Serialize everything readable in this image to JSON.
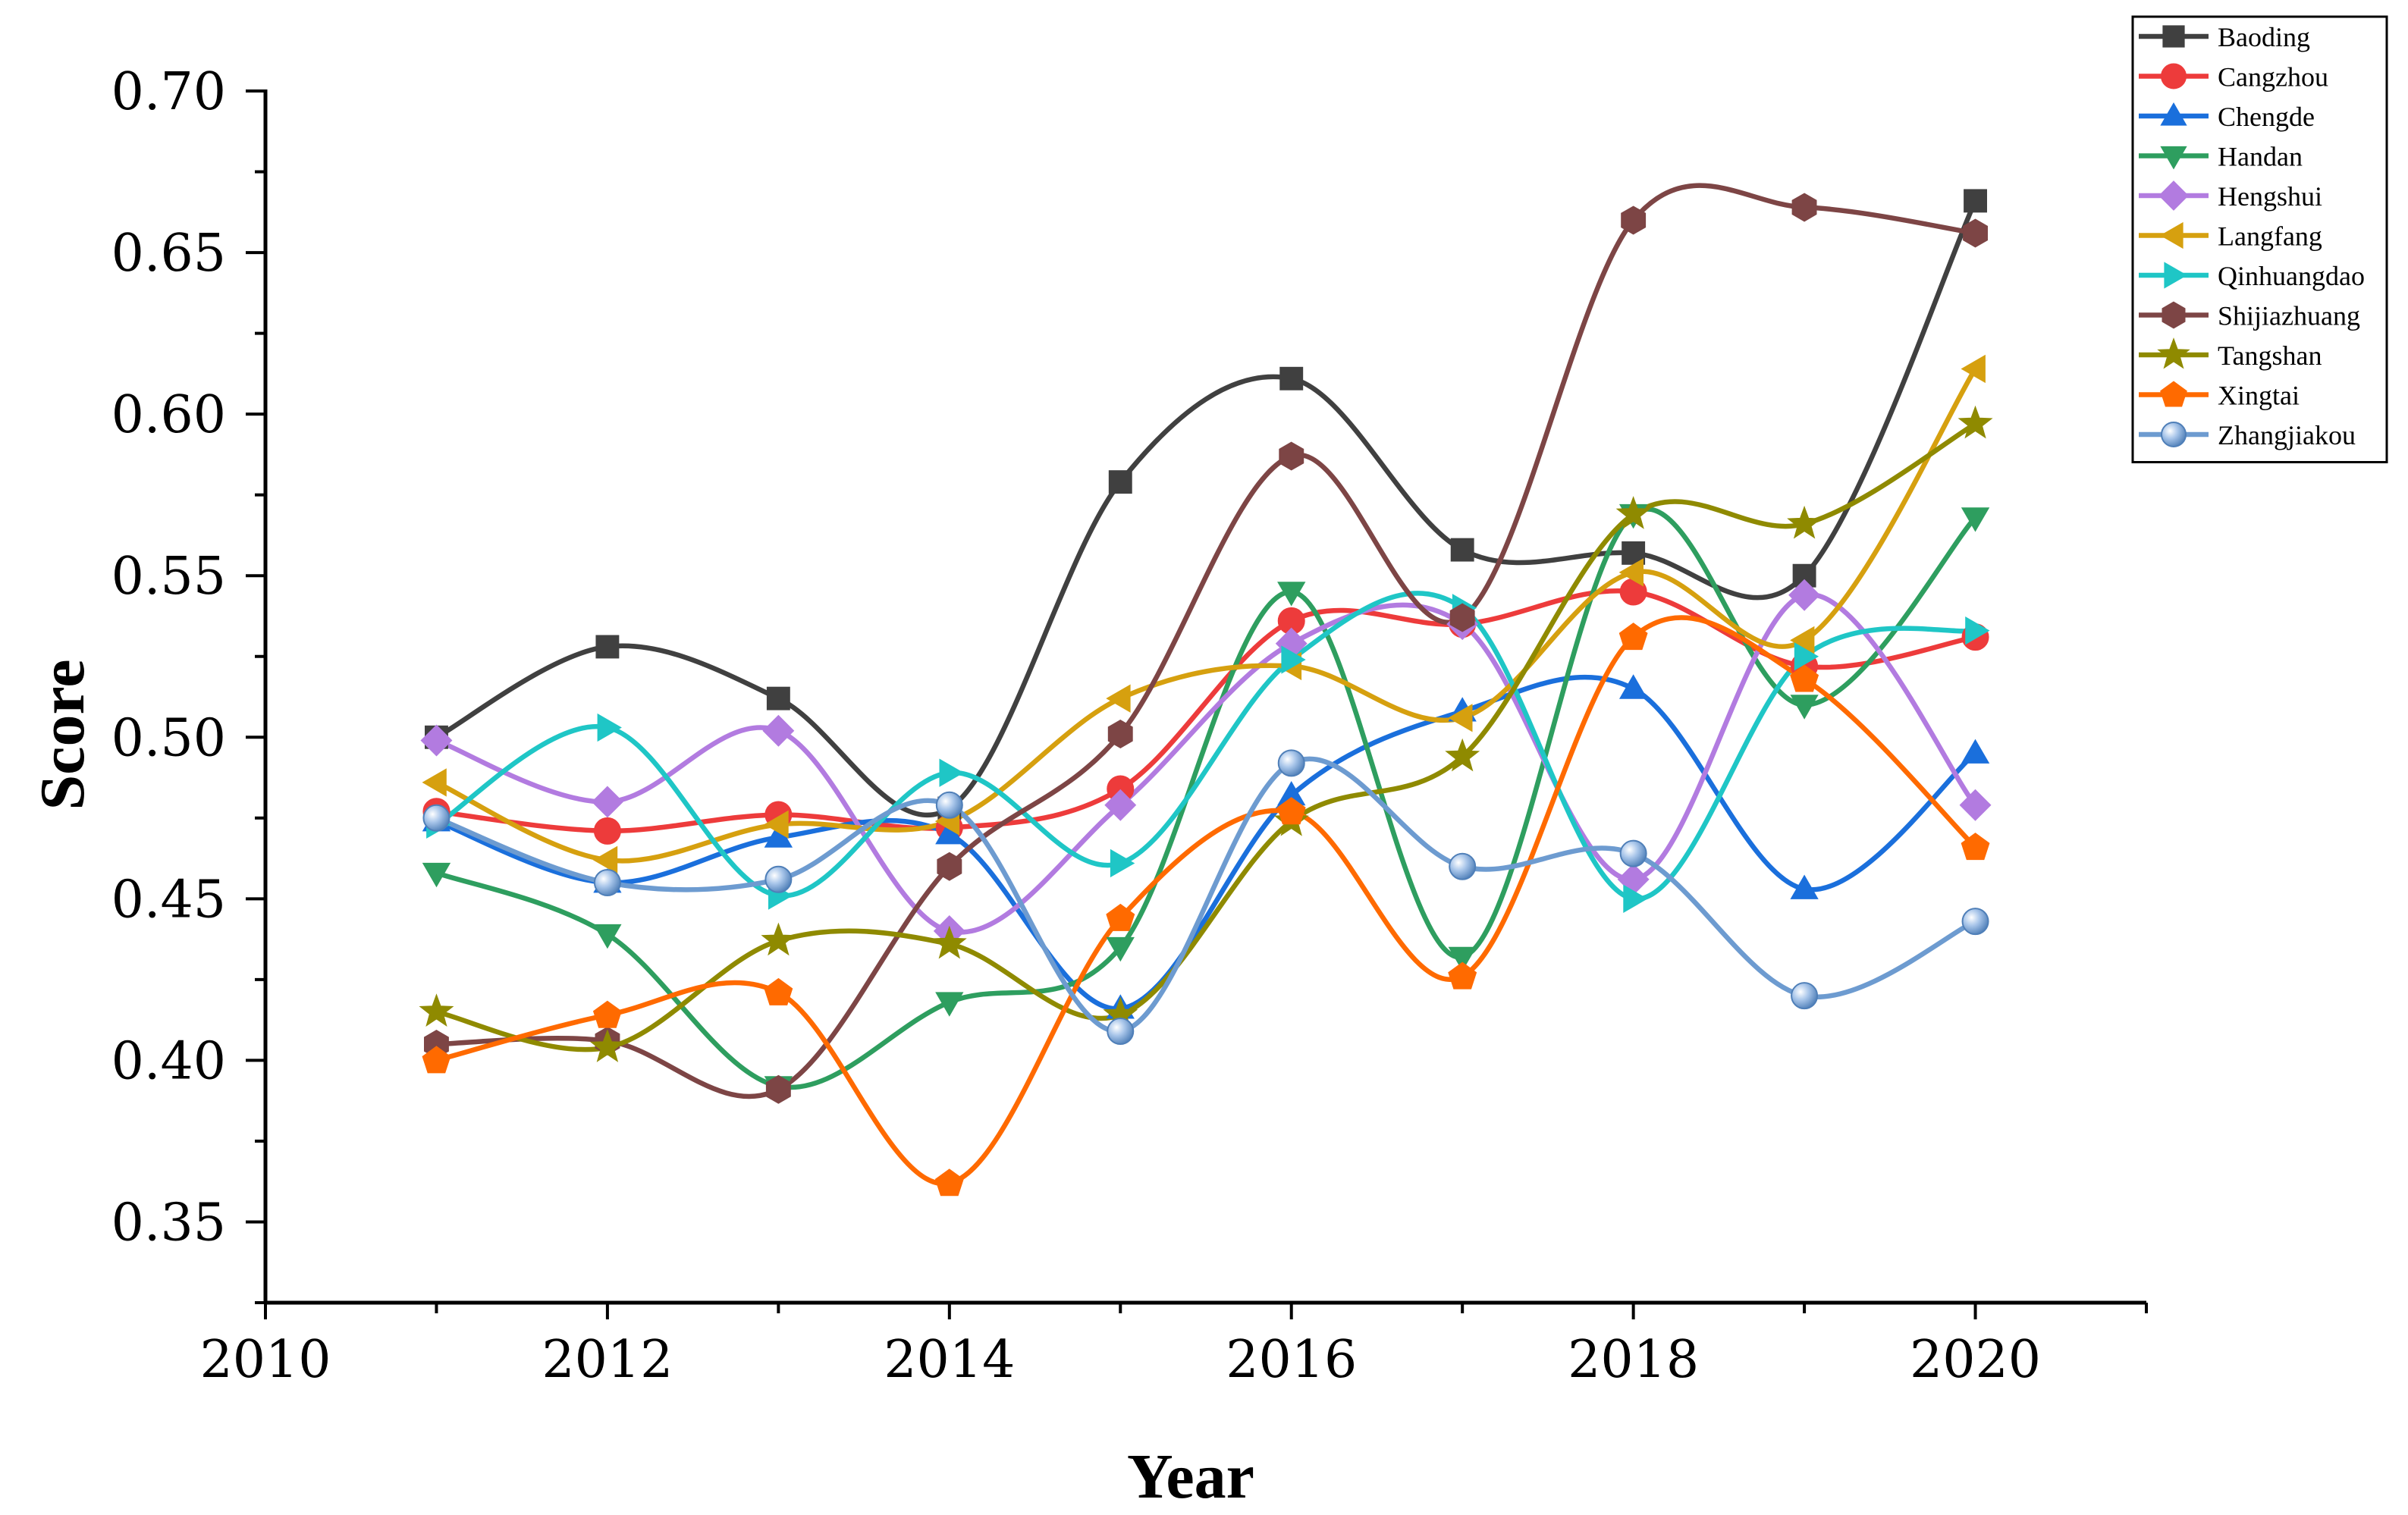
{
  "chart_data": {
    "type": "line",
    "xlabel": "Year",
    "ylabel": "Score",
    "xlim": [
      2010,
      2021
    ],
    "ylim": [
      0.325,
      0.7
    ],
    "x_ticks": [
      2010,
      2012,
      2014,
      2016,
      2018,
      2020
    ],
    "x_tick_labels": [
      "2010",
      "2012",
      "2014",
      "2016",
      "2018",
      "2020"
    ],
    "y_ticks": [
      0.35,
      0.4,
      0.45,
      0.5,
      0.55,
      0.6,
      0.65,
      0.7
    ],
    "y_tick_labels": [
      "0.35",
      "0.40",
      "0.45",
      "0.50",
      "0.55",
      "0.60",
      "0.65",
      "0.70"
    ],
    "x": [
      2011,
      2012,
      2013,
      2014,
      2015,
      2016,
      2017,
      2018,
      2019,
      2020
    ],
    "legend_position": "top-right",
    "series": [
      {
        "name": "Baoding",
        "color": "#404040",
        "marker": "square",
        "values": [
          0.5,
          0.528,
          0.512,
          0.478,
          0.579,
          0.611,
          0.558,
          0.557,
          0.55,
          0.666
        ]
      },
      {
        "name": "Cangzhou",
        "color": "#ed3b3b",
        "marker": "circle",
        "values": [
          0.477,
          0.471,
          0.476,
          0.472,
          0.484,
          0.536,
          0.535,
          0.545,
          0.522,
          0.531
        ]
      },
      {
        "name": "Chengde",
        "color": "#1a6fdc",
        "marker": "triangle-up",
        "values": [
          0.474,
          0.455,
          0.469,
          0.47,
          0.416,
          0.482,
          0.508,
          0.515,
          0.453,
          0.495
        ]
      },
      {
        "name": "Handan",
        "color": "#2e9e5f",
        "marker": "triangle-down",
        "values": [
          0.458,
          0.439,
          0.392,
          0.418,
          0.435,
          0.545,
          0.432,
          0.569,
          0.51,
          0.568
        ]
      },
      {
        "name": "Hengshui",
        "color": "#b27be0",
        "marker": "diamond",
        "values": [
          0.499,
          0.48,
          0.502,
          0.44,
          0.479,
          0.529,
          0.535,
          0.456,
          0.544,
          0.479
        ]
      },
      {
        "name": "Langfang",
        "color": "#d6a00f",
        "marker": "triangle-left",
        "values": [
          0.486,
          0.462,
          0.473,
          0.474,
          0.512,
          0.522,
          0.506,
          0.551,
          0.53,
          0.614
        ]
      },
      {
        "name": "Qinhuangdao",
        "color": "#1fc6c6",
        "marker": "triangle-right",
        "values": [
          0.473,
          0.503,
          0.451,
          0.489,
          0.461,
          0.524,
          0.54,
          0.45,
          0.525,
          0.533
        ]
      },
      {
        "name": "Shijiazhuang",
        "color": "#7d4545",
        "marker": "hexagon",
        "values": [
          0.405,
          0.406,
          0.391,
          0.46,
          0.501,
          0.587,
          0.537,
          0.66,
          0.664,
          0.656
        ]
      },
      {
        "name": "Tangshan",
        "color": "#8f8a00",
        "marker": "star",
        "values": [
          0.415,
          0.404,
          0.437,
          0.436,
          0.414,
          0.474,
          0.494,
          0.569,
          0.566,
          0.597
        ]
      },
      {
        "name": "Xingtai",
        "color": "#ff6a00",
        "marker": "pentagon",
        "values": [
          0.4,
          0.414,
          0.421,
          0.362,
          0.444,
          0.477,
          0.426,
          0.531,
          0.518,
          0.466
        ]
      },
      {
        "name": "Zhangjiakou",
        "color": "#6d9bd0",
        "marker": "sphere",
        "values": [
          0.475,
          0.455,
          0.456,
          0.479,
          0.409,
          0.492,
          0.46,
          0.464,
          0.42,
          0.443
        ]
      }
    ]
  }
}
